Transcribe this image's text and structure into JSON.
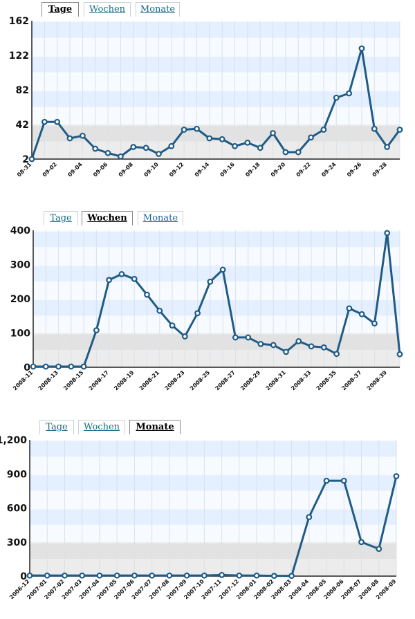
{
  "tab_labels": [
    "Tage",
    "Wochen",
    "Monate"
  ],
  "colors": {
    "line": "#1f5b86",
    "point_fill": "#ffffff",
    "band_blue": "#e4efff",
    "band_grey": "#ececec"
  },
  "chart_data": [
    {
      "type": "line",
      "active_tab": "Tage",
      "ylim": [
        2,
        162
      ],
      "yticks": [
        "2",
        "42",
        "82",
        "122",
        "162"
      ],
      "grid": true,
      "categories": [
        "08-31",
        "09-01",
        "09-02",
        "09-03",
        "09-04",
        "09-05",
        "09-06",
        "09-07",
        "09-08",
        "09-09",
        "09-10",
        "09-11",
        "09-12",
        "09-13",
        "09-14",
        "09-15",
        "09-16",
        "09-17",
        "09-18",
        "09-19",
        "09-20",
        "09-21",
        "09-22",
        "09-23",
        "09-24",
        "09-25",
        "09-26",
        "09-27",
        "09-28",
        "09-29"
      ],
      "xtick_labels": [
        "08-31",
        "09-02",
        "09-04",
        "09-06",
        "09-08",
        "09-10",
        "09-12",
        "09-14",
        "09-16",
        "09-18",
        "09-20",
        "09-22",
        "09-24",
        "09-26",
        "09-28"
      ],
      "values": [
        2,
        45,
        45,
        26,
        29,
        14,
        9,
        5,
        16,
        15,
        8,
        17,
        36,
        37,
        26,
        25,
        17,
        21,
        15,
        32,
        10,
        10,
        27,
        36,
        73,
        78,
        130,
        37,
        16,
        36
      ]
    },
    {
      "type": "line",
      "active_tab": "Wochen",
      "ylim": [
        0,
        400
      ],
      "yticks": [
        "0",
        "100",
        "200",
        "300",
        "400"
      ],
      "grid": true,
      "categories": [
        "2008-11",
        "2008-12",
        "2008-13",
        "2008-14",
        "2008-15",
        "2008-16",
        "2008-17",
        "2008-18",
        "2008-19",
        "2008-20",
        "2008-21",
        "2008-22",
        "2008-23",
        "2008-24",
        "2008-25",
        "2008-26",
        "2008-27",
        "2008-28",
        "2008-29",
        "2008-30",
        "2008-31",
        "2008-32",
        "2008-33",
        "2008-34",
        "2008-35",
        "2008-36",
        "2008-37",
        "2008-38",
        "2008-39",
        "2008-40"
      ],
      "xtick_labels": [
        "2008-11",
        "2008-13",
        "2008-15",
        "2008-17",
        "2008-19",
        "2008-21",
        "2008-23",
        "2008-25",
        "2008-27",
        "2008-29",
        "2008-31",
        "2008-33",
        "2008-35",
        "2008-37",
        "2008-39"
      ],
      "values": [
        2,
        2,
        2,
        2,
        2,
        108,
        255,
        272,
        258,
        212,
        165,
        122,
        90,
        158,
        250,
        285,
        87,
        87,
        68,
        65,
        45,
        76,
        61,
        58,
        39,
        172,
        155,
        128,
        392,
        38
      ]
    },
    {
      "type": "line",
      "active_tab": "Monate",
      "ylim": [
        0,
        1200
      ],
      "yticks": [
        "0",
        "300",
        "600",
        "900",
        "1,200"
      ],
      "grid": true,
      "categories": [
        "2006-12",
        "2007-01",
        "2007-02",
        "2007-03",
        "2007-04",
        "2007-05",
        "2007-06",
        "2007-07",
        "2007-08",
        "2007-09",
        "2007-10",
        "2007-11",
        "2007-12",
        "2008-01",
        "2008-02",
        "2008-03",
        "2008-04",
        "2008-05",
        "2008-06",
        "2008-07",
        "2008-08",
        "2008-09"
      ],
      "xtick_labels": [
        "2006-12",
        "2007-01",
        "2007-02",
        "2007-03",
        "2007-04",
        "2007-05",
        "2007-06",
        "2007-07",
        "2007-08",
        "2007-09",
        "2007-10",
        "2007-11",
        "2007-12",
        "2008-01",
        "2008-02",
        "2008-03",
        "2008-04",
        "2008-05",
        "2008-06",
        "2008-07",
        "2008-08",
        "2008-09"
      ],
      "values": [
        5,
        5,
        5,
        5,
        5,
        5,
        5,
        5,
        5,
        5,
        5,
        10,
        5,
        5,
        2,
        2,
        520,
        840,
        840,
        300,
        240,
        880
      ]
    }
  ]
}
